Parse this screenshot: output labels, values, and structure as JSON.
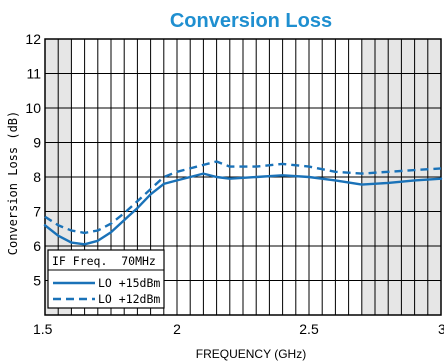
{
  "chart_data": {
    "type": "line",
    "title": "Conversion Loss",
    "xlabel": "FREQUENCY (GHz)",
    "ylabel": "Conversion Loss (dB)",
    "xlim": [
      1.5,
      3.0
    ],
    "ylim": [
      4,
      12
    ],
    "x_ticks": [
      "1.5",
      "2",
      "2.5",
      "3"
    ],
    "y_ticks": [
      "5",
      "6",
      "7",
      "8",
      "9",
      "10",
      "11",
      "12"
    ],
    "shaded_ranges": [
      [
        1.5,
        1.6
      ],
      [
        2.7,
        3.0
      ]
    ],
    "grid": true,
    "legend_note": "IF Freq.  70MHz",
    "legend_position": "bottom-left",
    "colors": {
      "series": "#1a72b8",
      "title": "#1f8fd0",
      "shade": "#e6e6e6",
      "grid": "#000000"
    },
    "series": [
      {
        "name": "LO +15dBm",
        "style": "solid",
        "points": [
          [
            1.5,
            6.6
          ],
          [
            1.55,
            6.3
          ],
          [
            1.6,
            6.1
          ],
          [
            1.65,
            6.05
          ],
          [
            1.7,
            6.15
          ],
          [
            1.75,
            6.4
          ],
          [
            1.8,
            6.75
          ],
          [
            1.85,
            7.1
          ],
          [
            1.9,
            7.5
          ],
          [
            1.95,
            7.8
          ],
          [
            2.0,
            7.9
          ],
          [
            2.05,
            8.0
          ],
          [
            2.1,
            8.1
          ],
          [
            2.15,
            8.0
          ],
          [
            2.2,
            7.95
          ],
          [
            2.3,
            8.0
          ],
          [
            2.4,
            8.05
          ],
          [
            2.5,
            8.0
          ],
          [
            2.6,
            7.9
          ],
          [
            2.7,
            7.78
          ],
          [
            2.8,
            7.83
          ],
          [
            2.9,
            7.9
          ],
          [
            3.0,
            7.95
          ]
        ]
      },
      {
        "name": "LO +12dBm",
        "style": "dashed",
        "points": [
          [
            1.5,
            6.85
          ],
          [
            1.55,
            6.6
          ],
          [
            1.6,
            6.45
          ],
          [
            1.65,
            6.38
          ],
          [
            1.7,
            6.45
          ],
          [
            1.75,
            6.65
          ],
          [
            1.8,
            6.95
          ],
          [
            1.85,
            7.3
          ],
          [
            1.9,
            7.65
          ],
          [
            1.95,
            8.0
          ],
          [
            2.0,
            8.15
          ],
          [
            2.05,
            8.25
          ],
          [
            2.1,
            8.35
          ],
          [
            2.15,
            8.45
          ],
          [
            2.2,
            8.3
          ],
          [
            2.3,
            8.3
          ],
          [
            2.4,
            8.38
          ],
          [
            2.5,
            8.3
          ],
          [
            2.6,
            8.15
          ],
          [
            2.7,
            8.1
          ],
          [
            2.8,
            8.15
          ],
          [
            2.9,
            8.2
          ],
          [
            3.0,
            8.25
          ]
        ]
      }
    ]
  }
}
